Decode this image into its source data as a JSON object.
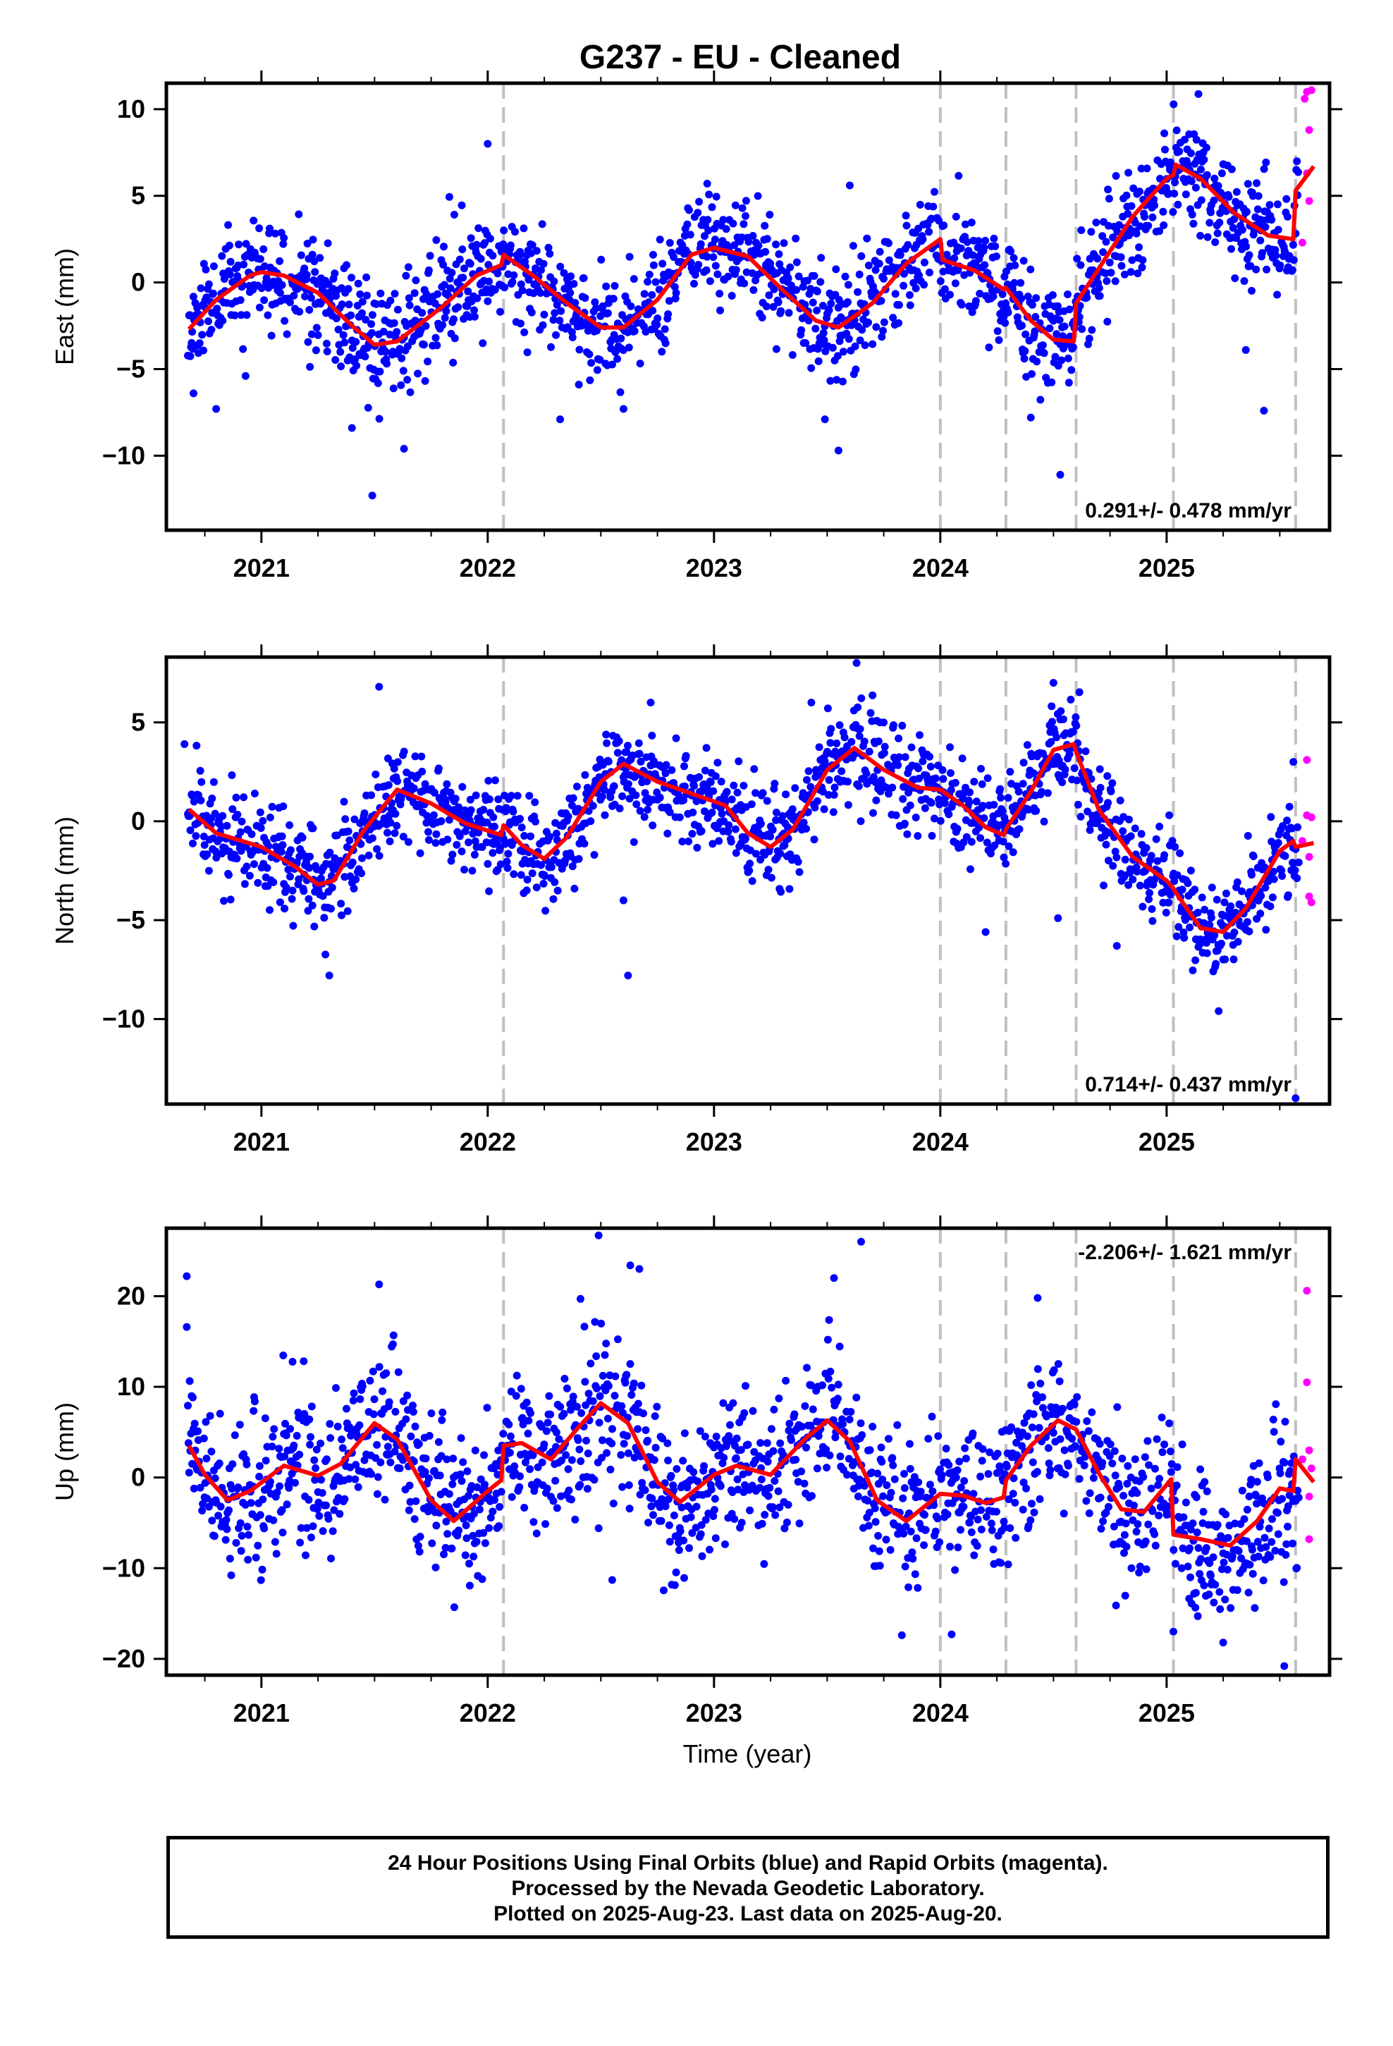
{
  "title": "G237  - EU - Cleaned",
  "x_axis": {
    "label": "Time (year)",
    "tick_labels": [
      "2021",
      "2022",
      "2023",
      "2024",
      "2025"
    ],
    "range": [
      2020.58,
      2025.72
    ]
  },
  "legend_lines": [
    "24 Hour Positions Using Final Orbits (blue) and Rapid Orbits (magenta).",
    "Processed by the Nevada Geodetic Laboratory.",
    "Plotted on 2025-Aug-23. Last data on 2025-Aug-20."
  ],
  "colors": {
    "final_orbits": "#0000ff",
    "rapid_orbits": "#ff00ff",
    "model": "#ff0000",
    "step_lines": "#c0c0c0"
  },
  "chart_data": [
    {
      "type": "scatter",
      "component": "East",
      "ylabel": "East (mm)",
      "ylim": [
        -14.3,
        11.5
      ],
      "yticks": [
        10,
        5,
        0,
        -5,
        -10
      ],
      "rate_text": "0.291+/- 0.478 mm/yr",
      "rate_position": "bottom-right",
      "step_epochs": [
        2022.07,
        2024.0,
        2024.29,
        2024.6,
        2025.03,
        2025.57
      ],
      "model": [
        [
          2020.68,
          -2.7
        ],
        [
          2020.8,
          -1.0
        ],
        [
          2020.95,
          0.4
        ],
        [
          2021.0,
          0.6
        ],
        [
          2021.1,
          0.4
        ],
        [
          2021.25,
          -0.6
        ],
        [
          2021.4,
          -2.5
        ],
        [
          2021.5,
          -3.6
        ],
        [
          2021.6,
          -3.4
        ],
        [
          2021.8,
          -1.4
        ],
        [
          2021.95,
          0.4
        ],
        [
          2022.06,
          1.0
        ],
        [
          2022.07,
          1.6
        ],
        [
          2022.2,
          0.4
        ],
        [
          2022.35,
          -1.2
        ],
        [
          2022.5,
          -2.6
        ],
        [
          2022.6,
          -2.6
        ],
        [
          2022.75,
          -1.0
        ],
        [
          2022.9,
          1.6
        ],
        [
          2023.0,
          2.0
        ],
        [
          2023.15,
          1.5
        ],
        [
          2023.3,
          -0.4
        ],
        [
          2023.45,
          -2.2
        ],
        [
          2023.55,
          -2.6
        ],
        [
          2023.7,
          -1.2
        ],
        [
          2023.85,
          1.1
        ],
        [
          2024.0,
          2.5
        ],
        [
          2024.01,
          1.3
        ],
        [
          2024.15,
          0.7
        ],
        [
          2024.28,
          -0.4
        ],
        [
          2024.29,
          -0.3
        ],
        [
          2024.4,
          -2.2
        ],
        [
          2024.5,
          -3.3
        ],
        [
          2024.59,
          -3.4
        ],
        [
          2024.6,
          -1.2
        ],
        [
          2024.7,
          0.8
        ],
        [
          2024.85,
          3.8
        ],
        [
          2025.0,
          6.0
        ],
        [
          2025.03,
          6.2
        ],
        [
          2025.04,
          6.8
        ],
        [
          2025.15,
          6.0
        ],
        [
          2025.3,
          4.0
        ],
        [
          2025.45,
          2.7
        ],
        [
          2025.56,
          2.5
        ],
        [
          2025.57,
          5.3
        ],
        [
          2025.65,
          6.7
        ]
      ],
      "outliers": [
        [
          2020.7,
          -6.4
        ],
        [
          2020.8,
          -7.3
        ],
        [
          2020.93,
          -5.4
        ],
        [
          2021.4,
          -8.4
        ],
        [
          2021.49,
          -12.3
        ],
        [
          2021.63,
          -9.6
        ],
        [
          2022.0,
          8.0
        ],
        [
          2022.32,
          -7.9
        ],
        [
          2022.6,
          -7.3
        ],
        [
          2022.97,
          5.7
        ],
        [
          2023.55,
          -9.7
        ],
        [
          2023.6,
          5.6
        ],
        [
          2023.49,
          -7.9
        ],
        [
          2024.4,
          -7.8
        ],
        [
          2024.53,
          -11.1
        ],
        [
          2025.35,
          -3.9
        ],
        [
          2025.43,
          -7.4
        ]
      ],
      "rapid": [
        [
          2025.61,
          10.6
        ],
        [
          2025.62,
          11.0
        ],
        [
          2025.63,
          8.8
        ],
        [
          2025.62,
          6.3
        ],
        [
          2025.63,
          4.7
        ],
        [
          2025.6,
          2.3
        ],
        [
          2025.64,
          11.1
        ]
      ],
      "point_seed": 11,
      "noise_mm": 1.6
    },
    {
      "type": "scatter",
      "component": "North",
      "ylabel": "North (mm)",
      "ylim": [
        -14.3,
        8.3
      ],
      "yticks": [
        5,
        0,
        -5,
        -10
      ],
      "rate_text": "0.714+/- 0.437 mm/yr",
      "rate_position": "bottom-right",
      "step_epochs": [
        2022.07,
        2024.0,
        2024.29,
        2024.6,
        2025.03,
        2025.57
      ],
      "model": [
        [
          2020.68,
          0.6
        ],
        [
          2020.8,
          -0.6
        ],
        [
          2021.0,
          -1.3
        ],
        [
          2021.15,
          -2.3
        ],
        [
          2021.25,
          -3.2
        ],
        [
          2021.32,
          -3.0
        ],
        [
          2021.45,
          -0.5
        ],
        [
          2021.6,
          1.6
        ],
        [
          2021.75,
          0.9
        ],
        [
          2021.9,
          -0.1
        ],
        [
          2022.06,
          -0.7
        ],
        [
          2022.07,
          -0.2
        ],
        [
          2022.15,
          -1.2
        ],
        [
          2022.25,
          -1.9
        ],
        [
          2022.35,
          -0.8
        ],
        [
          2022.5,
          2.0
        ],
        [
          2022.6,
          2.9
        ],
        [
          2022.75,
          2.0
        ],
        [
          2022.9,
          1.4
        ],
        [
          2023.05,
          0.8
        ],
        [
          2023.15,
          -0.6
        ],
        [
          2023.25,
          -1.3
        ],
        [
          2023.35,
          -0.4
        ],
        [
          2023.5,
          2.6
        ],
        [
          2023.62,
          3.7
        ],
        [
          2023.75,
          2.6
        ],
        [
          2023.9,
          1.7
        ],
        [
          2024.0,
          1.6
        ],
        [
          2024.1,
          0.8
        ],
        [
          2024.2,
          -0.3
        ],
        [
          2024.28,
          -0.7
        ],
        [
          2024.29,
          -0.4
        ],
        [
          2024.4,
          1.5
        ],
        [
          2024.5,
          3.6
        ],
        [
          2024.59,
          3.9
        ],
        [
          2024.6,
          3.5
        ],
        [
          2024.7,
          0.6
        ],
        [
          2024.85,
          -1.8
        ],
        [
          2025.0,
          -3.0
        ],
        [
          2025.03,
          -3.4
        ],
        [
          2025.04,
          -3.6
        ],
        [
          2025.15,
          -5.4
        ],
        [
          2025.25,
          -5.6
        ],
        [
          2025.35,
          -4.4
        ],
        [
          2025.5,
          -1.5
        ],
        [
          2025.56,
          -1.0
        ],
        [
          2025.57,
          -1.3
        ],
        [
          2025.65,
          -1.1
        ]
      ],
      "outliers": [
        [
          2020.66,
          3.9
        ],
        [
          2021.3,
          -7.8
        ],
        [
          2021.52,
          6.8
        ],
        [
          2022.6,
          -4.0
        ],
        [
          2022.62,
          -7.8
        ],
        [
          2022.72,
          6.0
        ],
        [
          2023.43,
          6.0
        ],
        [
          2023.63,
          8.0
        ],
        [
          2024.2,
          -5.6
        ],
        [
          2024.5,
          7.0
        ],
        [
          2024.52,
          -4.9
        ],
        [
          2024.78,
          -6.3
        ],
        [
          2025.23,
          -9.6
        ],
        [
          2025.56,
          3.0
        ],
        [
          2025.57,
          -14.0
        ]
      ],
      "rapid": [
        [
          2025.62,
          3.1
        ],
        [
          2025.62,
          0.3
        ],
        [
          2025.63,
          -1.8
        ],
        [
          2025.63,
          -3.8
        ],
        [
          2025.64,
          -4.1
        ],
        [
          2025.6,
          -1.0
        ],
        [
          2025.64,
          0.2
        ]
      ],
      "point_seed": 29,
      "noise_mm": 1.2
    },
    {
      "type": "scatter",
      "component": "Up",
      "ylabel": "Up (mm)",
      "ylim": [
        -21.8,
        27.5
      ],
      "yticks": [
        20,
        10,
        0,
        -10,
        -20
      ],
      "rate_text": "-2.206+/- 1.621 mm/yr",
      "rate_position": "top-right",
      "step_epochs": [
        2022.07,
        2024.0,
        2024.29,
        2024.6,
        2025.03,
        2025.57
      ],
      "model": [
        [
          2020.68,
          3.5
        ],
        [
          2020.75,
          0.3
        ],
        [
          2020.85,
          -2.5
        ],
        [
          2020.95,
          -1.5
        ],
        [
          2021.1,
          1.3
        ],
        [
          2021.25,
          0.2
        ],
        [
          2021.35,
          1.5
        ],
        [
          2021.5,
          6.0
        ],
        [
          2021.6,
          4.2
        ],
        [
          2021.75,
          -2.5
        ],
        [
          2021.85,
          -4.8
        ],
        [
          2022.0,
          -1.5
        ],
        [
          2022.06,
          -0.3
        ],
        [
          2022.07,
          3.5
        ],
        [
          2022.15,
          3.8
        ],
        [
          2022.28,
          2.0
        ],
        [
          2022.4,
          5.5
        ],
        [
          2022.5,
          8.2
        ],
        [
          2022.62,
          6.0
        ],
        [
          2022.75,
          -0.5
        ],
        [
          2022.85,
          -2.7
        ],
        [
          2023.0,
          0.3
        ],
        [
          2023.1,
          1.3
        ],
        [
          2023.25,
          0.3
        ],
        [
          2023.4,
          4.2
        ],
        [
          2023.5,
          6.3
        ],
        [
          2023.6,
          4.0
        ],
        [
          2023.72,
          -2.5
        ],
        [
          2023.85,
          -4.8
        ],
        [
          2024.0,
          -1.8
        ],
        [
          2024.1,
          -2.0
        ],
        [
          2024.2,
          -2.8
        ],
        [
          2024.28,
          -2.2
        ],
        [
          2024.29,
          -0.3
        ],
        [
          2024.4,
          3.5
        ],
        [
          2024.52,
          6.3
        ],
        [
          2024.6,
          5.3
        ],
        [
          2024.7,
          0.5
        ],
        [
          2024.8,
          -3.5
        ],
        [
          2024.9,
          -3.8
        ],
        [
          2025.02,
          -0.2
        ],
        [
          2025.03,
          -6.3
        ],
        [
          2025.15,
          -6.8
        ],
        [
          2025.28,
          -7.5
        ],
        [
          2025.4,
          -4.8
        ],
        [
          2025.5,
          -1.2
        ],
        [
          2025.56,
          -1.5
        ],
        [
          2025.57,
          2.0
        ],
        [
          2025.65,
          -0.5
        ]
      ],
      "outliers": [
        [
          2020.67,
          22.2
        ],
        [
          2020.67,
          16.6
        ],
        [
          2021.52,
          21.3
        ],
        [
          2022.41,
          19.7
        ],
        [
          2022.49,
          26.7
        ],
        [
          2022.63,
          23.4
        ],
        [
          2022.67,
          23.0
        ],
        [
          2023.53,
          22.0
        ],
        [
          2023.65,
          26.0
        ],
        [
          2024.43,
          19.8
        ],
        [
          2022.55,
          -11.3
        ],
        [
          2023.83,
          -17.4
        ],
        [
          2024.05,
          -17.3
        ],
        [
          2025.03,
          -17.0
        ],
        [
          2025.25,
          -18.2
        ],
        [
          2025.52,
          -20.8
        ]
      ],
      "rapid": [
        [
          2025.62,
          20.6
        ],
        [
          2025.62,
          10.5
        ],
        [
          2025.63,
          3.0
        ],
        [
          2025.63,
          -2.1
        ],
        [
          2025.63,
          -6.8
        ],
        [
          2025.6,
          2.0
        ],
        [
          2025.64,
          1.0
        ]
      ],
      "point_seed": 47,
      "noise_mm": 4.0
    }
  ]
}
